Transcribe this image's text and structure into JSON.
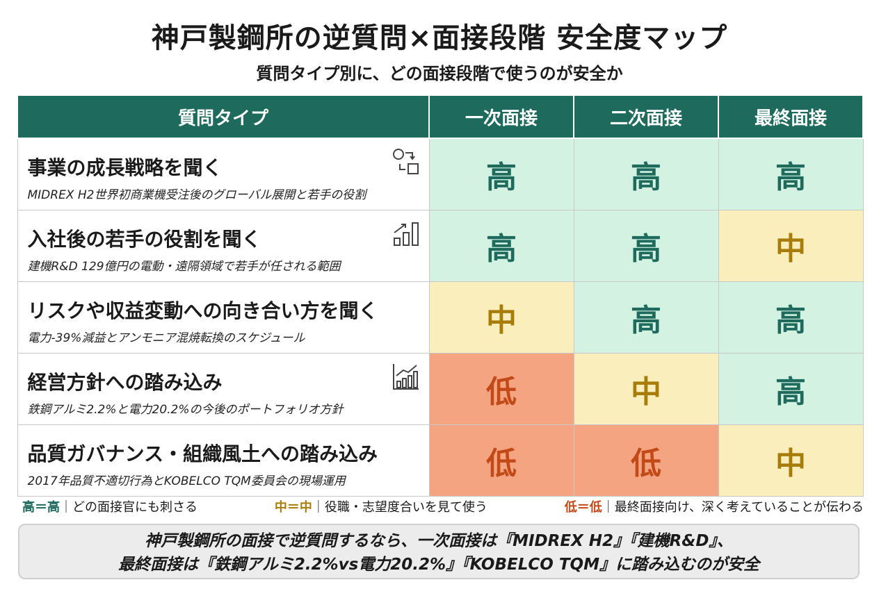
{
  "title": "神戸製鋼所の逆質問×面接段階 安全度マップ",
  "subtitle": "質問タイプ別に、どの面接段階で使うのが安全か",
  "table": {
    "headers": [
      "質問タイプ",
      "一次面接",
      "二次面接",
      "最終面接"
    ],
    "rows": [
      {
        "title": "事業の成長戦略を聞く",
        "desc": "MIDREX H2世界初商業機受注後のグローバル展開と若手の役割",
        "icon": "strategy-flow-icon",
        "levels": [
          "高",
          "高",
          "高"
        ]
      },
      {
        "title": "入社後の若手の役割を聞く",
        "desc": "建機R&D 129億円の電動・遠隔領域で若手が任される範囲",
        "icon": "growth-bars-icon",
        "levels": [
          "高",
          "高",
          "中"
        ]
      },
      {
        "title": "リスクや収益変動への向き合い方を聞く",
        "desc": "電力-39%減益とアンモニア混焼転換のスケジュール",
        "icon": "",
        "levels": [
          "中",
          "高",
          "高"
        ]
      },
      {
        "title": "経営方針への踏み込み",
        "desc": "鉄鋼アルミ2.2%と電力20.2%の今後のポートフォリオ方針",
        "icon": "bar-chart-trend-icon",
        "levels": [
          "低",
          "中",
          "高"
        ]
      },
      {
        "title": "品質ガバナンス・組織風土への踏み込み",
        "desc": "2017年品質不適切行為とKOBELCO TQM委員会の現場運用",
        "icon": "",
        "levels": [
          "低",
          "低",
          "中"
        ]
      }
    ]
  },
  "legend": {
    "high_key": "高＝高",
    "high_text": "｜どの面接官にも刺さる",
    "mid_key": "中＝中",
    "mid_text": "｜役職・志望度合いを見て使う",
    "low_key": "低＝低",
    "low_text": "｜最終面接向け、深く考えていることが伝わる"
  },
  "summary": {
    "line1": "神戸製鋼所の面接で逆質問するなら、一次面接は『MIDREX H2』『建機R&D』、",
    "line2": "最終面接は『鉄鋼アルミ2.2%vs電力20.2%』『KOBELCO TQM』に踏み込むのが安全"
  },
  "colors": {
    "header": "#1e6b5e",
    "high_bg": "#d4f2e2",
    "mid_bg": "#fbeebd",
    "low_bg": "#f4a480"
  }
}
